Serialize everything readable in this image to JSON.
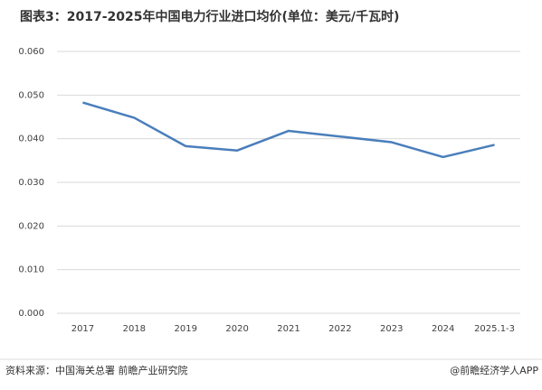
{
  "chart_data": {
    "type": "line",
    "title": "图表3：2017-2025年中国电力行业进口均价(单位：美元/千瓦时)",
    "categories": [
      "2017",
      "2018",
      "2019",
      "2020",
      "2021",
      "2022",
      "2023",
      "2024",
      "2025.1-3"
    ],
    "series": [
      {
        "color": "#4a7ebb",
        "values": [
          0.0483,
          0.0448,
          0.0383,
          0.0373,
          0.0418,
          0.0405,
          0.0392,
          0.0358,
          0.0386
        ]
      }
    ],
    "ylim": [
      0,
      0.06
    ],
    "yticks": [
      {
        "value": 0,
        "label": "0.000"
      },
      {
        "value": 0.01,
        "label": "0.010"
      },
      {
        "value": 0.02,
        "label": "0.020"
      },
      {
        "value": 0.03,
        "label": "0.030"
      },
      {
        "value": 0.04,
        "label": "0.040"
      },
      {
        "value": 0.05,
        "label": "0.050"
      },
      {
        "value": 0.06,
        "label": "0.060"
      }
    ],
    "grid": true,
    "source": "资料来源：中国海关总署 前瞻产业研究院",
    "credit": "@前瞻经济学人APP"
  }
}
